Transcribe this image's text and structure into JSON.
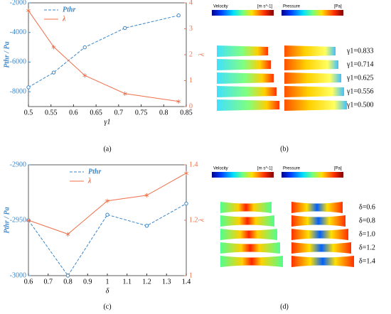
{
  "chart_data": [
    {
      "type": "line",
      "panel": "(a)",
      "xlabel": "γ1",
      "ylabel": "Pthr / Pa",
      "y2label": "λ",
      "x": [
        0.5,
        0.556,
        0.625,
        0.714,
        0.833
      ],
      "xlim": [
        0.5,
        0.85
      ],
      "xticks": [
        0.5,
        0.55,
        0.6,
        0.65,
        0.7,
        0.75,
        0.8,
        0.85
      ],
      "ylim": [
        -9000,
        -2000
      ],
      "yticks": [
        -8000,
        -6000,
        -4000,
        -2000
      ],
      "y2lim": [
        0,
        4
      ],
      "y2ticks": [
        0,
        1,
        2,
        3,
        4
      ],
      "series": [
        {
          "name": "Pthr",
          "color": "#3a86c8",
          "values": [
            -7700,
            -6700,
            -5000,
            -3700,
            -2850
          ]
        },
        {
          "name": "λ",
          "color": "#f0704a",
          "axis": "y2",
          "values": [
            3.7,
            2.3,
            1.2,
            0.5,
            0.2
          ]
        }
      ]
    },
    {
      "type": "line",
      "panel": "(c)",
      "xlabel": "δ",
      "ylabel": "Pthr / Pa",
      "y2label": "λ",
      "x": [
        0.6,
        0.8,
        1.0,
        1.2,
        1.4
      ],
      "xlim": [
        0.6,
        1.4
      ],
      "xticks": [
        0.6,
        0.7,
        0.8,
        0.9,
        1,
        1.1,
        1.2,
        1.3,
        1.4
      ],
      "ylim": [
        -3000,
        -2900
      ],
      "yticks": [
        -3000,
        -2950,
        -2900
      ],
      "y2lim": [
        1,
        1.4
      ],
      "y2ticks": [
        1,
        1.2,
        1.4
      ],
      "series": [
        {
          "name": "Pthr",
          "color": "#3a86c8",
          "values": [
            -2950,
            -3000,
            -2945,
            -2955,
            -2935
          ]
        },
        {
          "name": "λ",
          "color": "#f0704a",
          "axis": "y2",
          "values": [
            1.2,
            1.15,
            1.27,
            1.29,
            1.37
          ]
        }
      ]
    }
  ],
  "panels": {
    "b": {
      "label": "(b)",
      "velocity": "Velocity",
      "velocity_unit": "[m s^-1]",
      "pressure": "Pressure",
      "pressure_unit": "[Pa]",
      "rows": [
        "γ1=0.833",
        "γ1=0.714",
        "γ1=0.625",
        "γ1=0.556",
        "γ1=0.500"
      ]
    },
    "d": {
      "label": "(d)",
      "velocity": "Velocity",
      "velocity_unit": "[m s^-1]",
      "pressure": "Pressure",
      "pressure_unit": "[Pa]",
      "rows": [
        "δ=0.6",
        "δ=0.8",
        "δ=1.0",
        "δ=1.2",
        "δ=1.4"
      ]
    }
  }
}
